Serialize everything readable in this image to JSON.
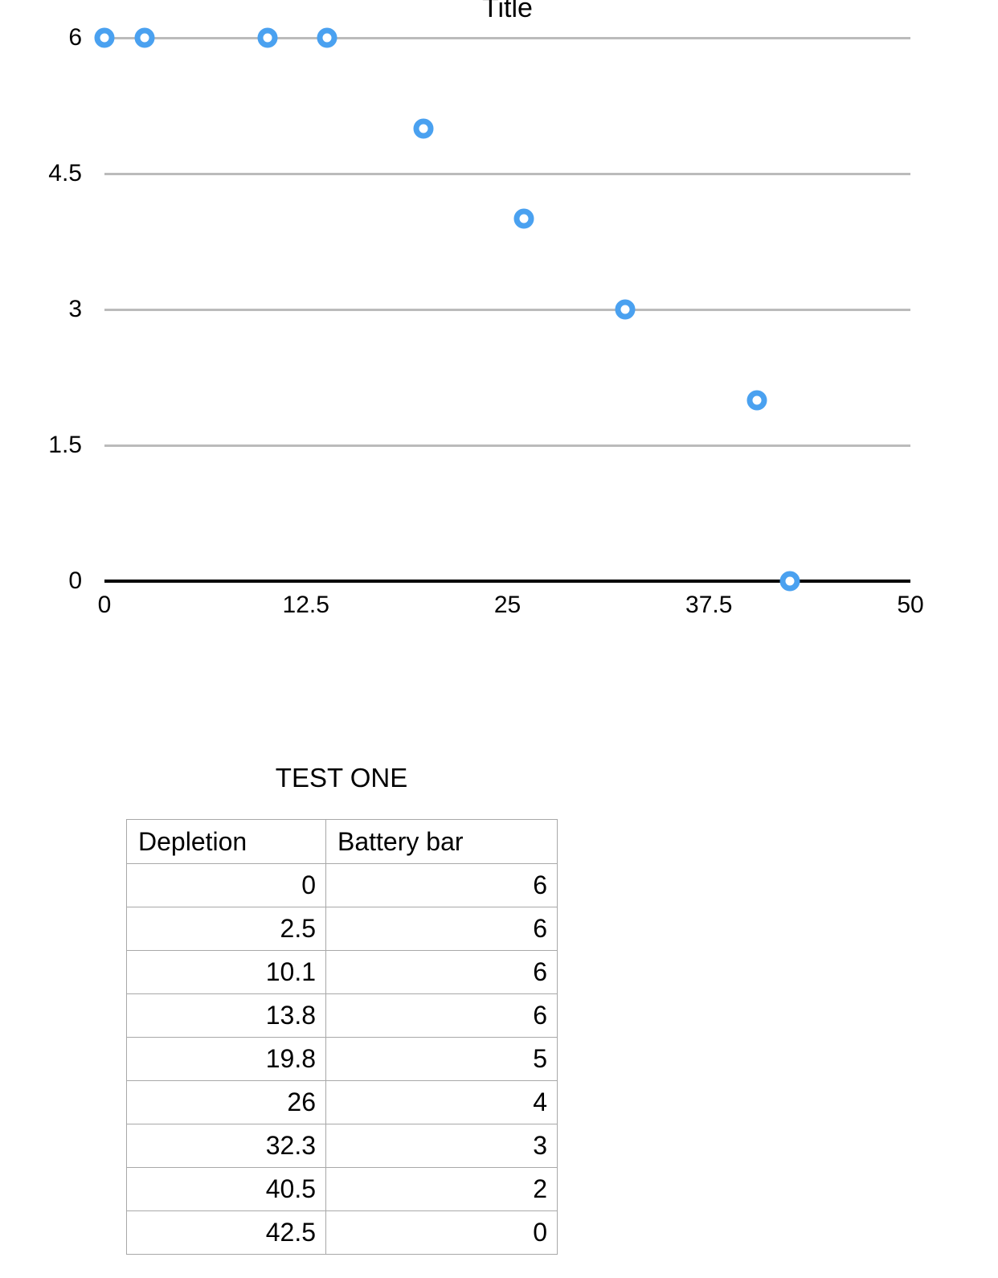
{
  "chart": {
    "title": "Title",
    "marker_color": "#4aa1f0",
    "gridline_color": "#bbbbbb",
    "axis_color": "#000000"
  },
  "chart_data": {
    "type": "scatter",
    "title": "Title",
    "series": [
      {
        "name": "Battery bar",
        "points": [
          [
            0,
            6
          ],
          [
            2.5,
            6
          ],
          [
            10.1,
            6
          ],
          [
            13.8,
            6
          ],
          [
            19.8,
            5
          ],
          [
            26,
            4
          ],
          [
            32.3,
            3
          ],
          [
            40.5,
            2
          ],
          [
            42.5,
            0
          ]
        ]
      }
    ],
    "xlabel": "",
    "ylabel": "",
    "xlim": [
      0,
      50
    ],
    "ylim": [
      0,
      6
    ],
    "x_ticks": [
      0,
      12.5,
      25,
      37.5,
      50
    ],
    "y_ticks": [
      0,
      1.5,
      3,
      4.5,
      6
    ],
    "x_tick_labels": [
      "0",
      "12.5",
      "25",
      "37.5",
      "50"
    ],
    "y_tick_labels": [
      "0",
      "1.5",
      "3",
      "4.5",
      "6"
    ],
    "grid": "horizontal-only",
    "legend": "none",
    "marker": "open-circle"
  },
  "table": {
    "title": "TEST ONE",
    "columns": [
      "Depletion",
      "Battery bar"
    ],
    "rows": [
      [
        "0",
        "6"
      ],
      [
        "2.5",
        "6"
      ],
      [
        "10.1",
        "6"
      ],
      [
        "13.8",
        "6"
      ],
      [
        "19.8",
        "5"
      ],
      [
        "26",
        "4"
      ],
      [
        "32.3",
        "3"
      ],
      [
        "40.5",
        "2"
      ],
      [
        "42.5",
        "0"
      ]
    ]
  }
}
